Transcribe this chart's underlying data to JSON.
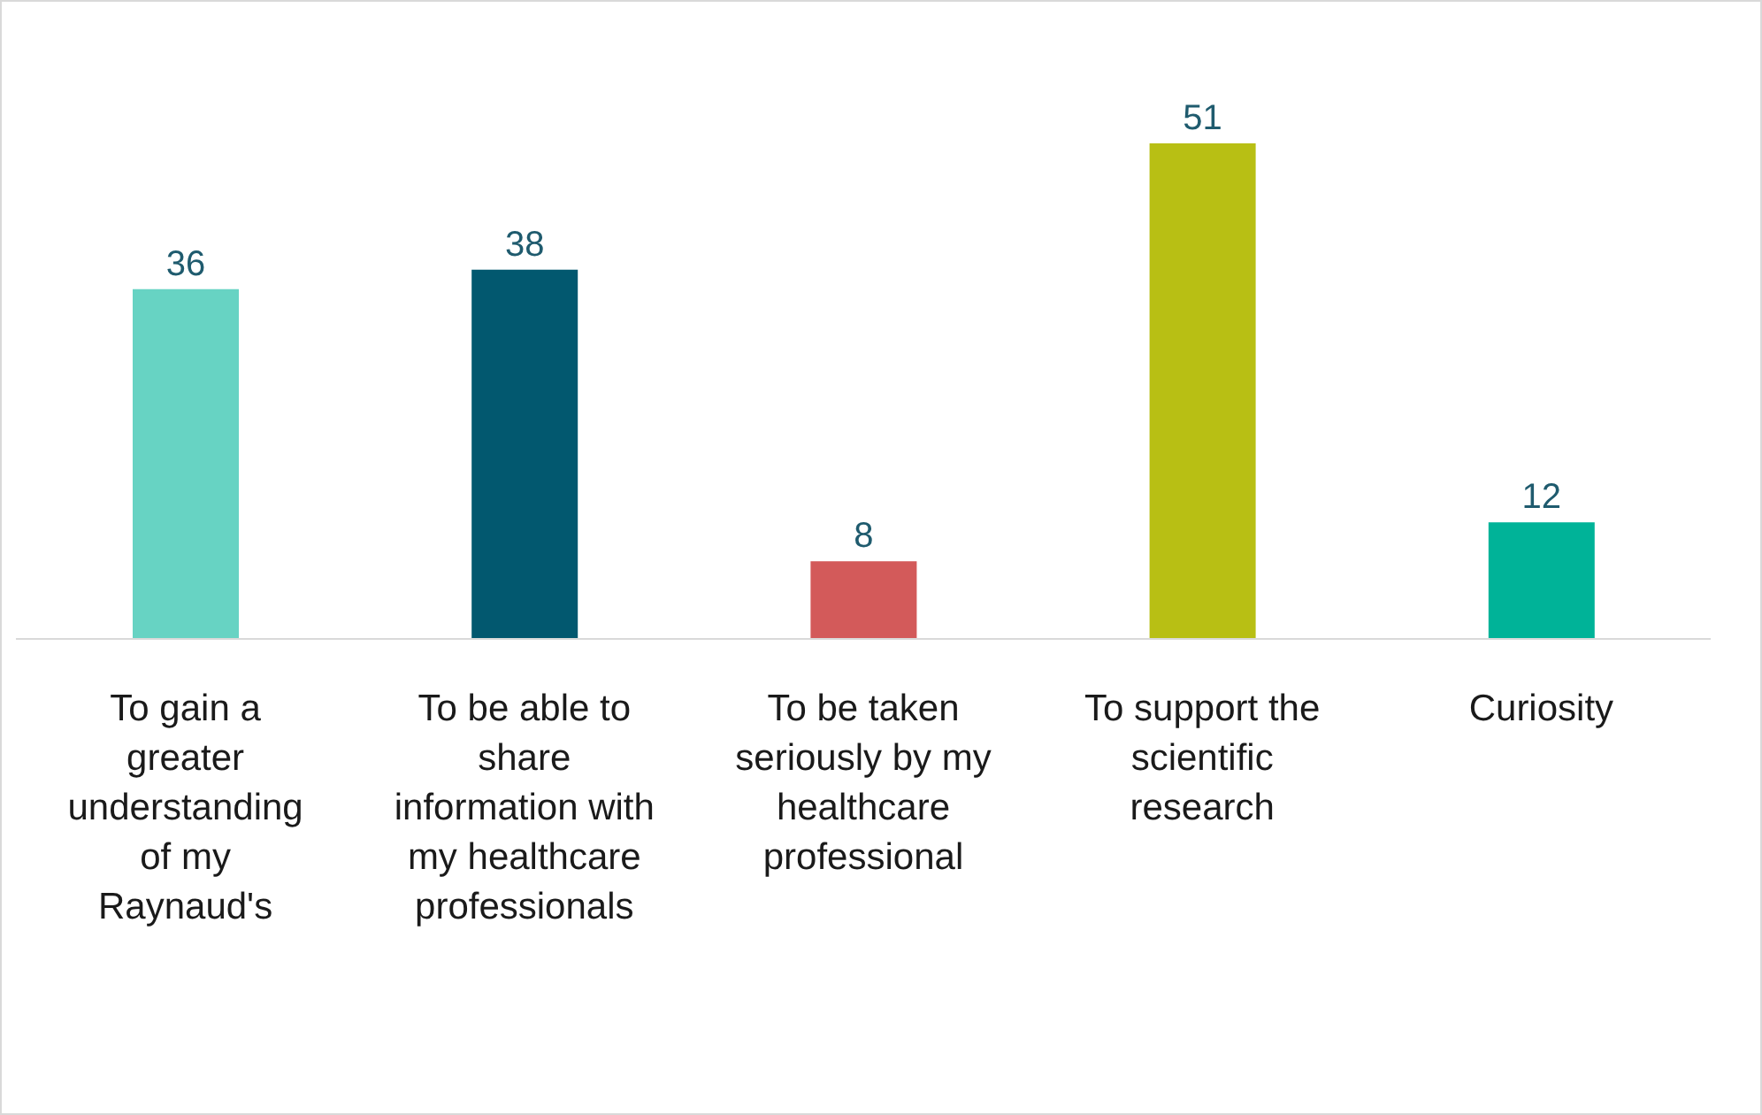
{
  "chart_data": {
    "type": "bar",
    "categories": [
      "To gain a greater understanding of my Raynaud's",
      "To be able to share information with my healthcare professionals",
      "To be taken seriously by my healthcare professional",
      "To support the scientific research",
      "Curiosity"
    ],
    "values": [
      36,
      38,
      8,
      51,
      12
    ],
    "colors": [
      "#67d3c3",
      "#02586f",
      "#d35a5a",
      "#b8bf14",
      "#00b398"
    ],
    "data_labels": true
  }
}
